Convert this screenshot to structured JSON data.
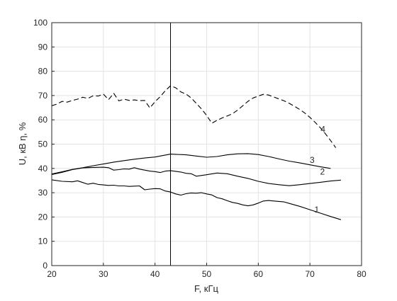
{
  "chart_data": {
    "type": "line",
    "title": "",
    "xlabel": "F, кГц",
    "ylabel": "U, кВ   η, %",
    "xlim": [
      20,
      80
    ],
    "ylim": [
      0,
      100
    ],
    "xticks": [
      20,
      30,
      40,
      50,
      60,
      70,
      80
    ],
    "yticks": [
      0,
      10,
      20,
      30,
      40,
      50,
      60,
      70,
      80,
      90,
      100
    ],
    "grid": true,
    "legend": "none",
    "vertical_marker_x": 43,
    "series": [
      {
        "label": "1",
        "style": "solid",
        "color": "#000000",
        "x": [
          20,
          22,
          24,
          25,
          26,
          27,
          28,
          29,
          30,
          31,
          32,
          33,
          34,
          35,
          36,
          37,
          38,
          39,
          40,
          41,
          42,
          43,
          44,
          45,
          46,
          47,
          48,
          49,
          50,
          51,
          52,
          53,
          54,
          55,
          56,
          57,
          58,
          59,
          60,
          61,
          62,
          63,
          64,
          65,
          66,
          68,
          70,
          72,
          74,
          76
        ],
        "y": [
          35.3,
          34.7,
          34.5,
          34.9,
          34.2,
          33.5,
          33.9,
          33.4,
          33.2,
          33.0,
          33.1,
          32.8,
          32.8,
          32.6,
          32.7,
          32.8,
          31.2,
          31.5,
          31.7,
          31.6,
          30.7,
          30.3,
          29.5,
          29.0,
          29.6,
          29.9,
          29.8,
          30.0,
          29.5,
          29.1,
          28.0,
          27.5,
          26.7,
          26.0,
          25.6,
          25.0,
          24.6,
          25.0,
          25.7,
          26.6,
          26.8,
          26.6,
          26.4,
          26.2,
          25.6,
          24.4,
          23.0,
          21.6,
          20.2,
          18.9
        ]
      },
      {
        "label": "2",
        "style": "solid",
        "color": "#000000",
        "x": [
          20,
          22,
          24,
          26,
          28,
          30,
          31,
          32,
          33,
          34,
          35,
          36,
          37,
          38,
          39,
          40,
          41,
          42,
          43,
          44,
          45,
          46,
          47,
          48,
          50,
          52,
          54,
          56,
          58,
          60,
          62,
          64,
          66,
          68,
          70,
          72,
          74,
          76
        ],
        "y": [
          37.5,
          38.4,
          39.5,
          40.2,
          40.4,
          40.5,
          40.3,
          39.3,
          39.5,
          39.8,
          39.7,
          40.3,
          39.7,
          39.3,
          38.9,
          38.7,
          38.3,
          38.9,
          39.1,
          38.8,
          38.5,
          38.0,
          37.8,
          36.8,
          37.4,
          38.1,
          37.8,
          36.8,
          35.9,
          34.7,
          33.8,
          33.3,
          32.9,
          33.3,
          33.8,
          34.3,
          34.8,
          35.2
        ]
      },
      {
        "label": "3",
        "style": "solid",
        "color": "#000000",
        "x": [
          20,
          22,
          24,
          26,
          28,
          30,
          32,
          34,
          36,
          38,
          40,
          42,
          43,
          44,
          46,
          48,
          50,
          52,
          54,
          56,
          58,
          60,
          62,
          64,
          66,
          68,
          70,
          72,
          74
        ],
        "y": [
          37.7,
          38.6,
          39.6,
          40.3,
          41.1,
          41.8,
          42.6,
          43.2,
          43.8,
          44.3,
          44.7,
          45.5,
          45.9,
          45.8,
          45.6,
          45.1,
          44.6,
          44.9,
          45.6,
          46.0,
          46.1,
          45.7,
          44.9,
          43.9,
          43.0,
          42.3,
          41.5,
          40.7,
          40.0
        ]
      },
      {
        "label": "4",
        "style": "dashed",
        "color": "#000000",
        "x": [
          20,
          21,
          22,
          23,
          24,
          25,
          26,
          27,
          28,
          29,
          30,
          31,
          32,
          33,
          34,
          35,
          36,
          37,
          38,
          39,
          40,
          41,
          42,
          43,
          44,
          45,
          46,
          47,
          48,
          49,
          50,
          51,
          52,
          53,
          54,
          55,
          56,
          57,
          58,
          59,
          60,
          61,
          62,
          63,
          64,
          65,
          66,
          67,
          68,
          69,
          70,
          71,
          72,
          73,
          74,
          75
        ],
        "y": [
          65.8,
          66.5,
          67.6,
          67.3,
          68.0,
          68.5,
          69.3,
          68.8,
          69.9,
          69.8,
          70.6,
          68.3,
          70.9,
          67.8,
          68.5,
          68.0,
          68.2,
          67.9,
          68.0,
          64.9,
          67.5,
          69.5,
          72.0,
          74.0,
          73.2,
          71.5,
          70.6,
          69.0,
          66.8,
          64.5,
          61.8,
          58.6,
          59.8,
          60.8,
          61.6,
          62.5,
          64.0,
          65.8,
          67.6,
          69.0,
          69.8,
          70.5,
          70.2,
          69.4,
          68.6,
          67.8,
          66.8,
          65.6,
          64.3,
          62.8,
          61.0,
          59.0,
          56.8,
          54.3,
          51.5,
          48.5
        ]
      }
    ]
  }
}
